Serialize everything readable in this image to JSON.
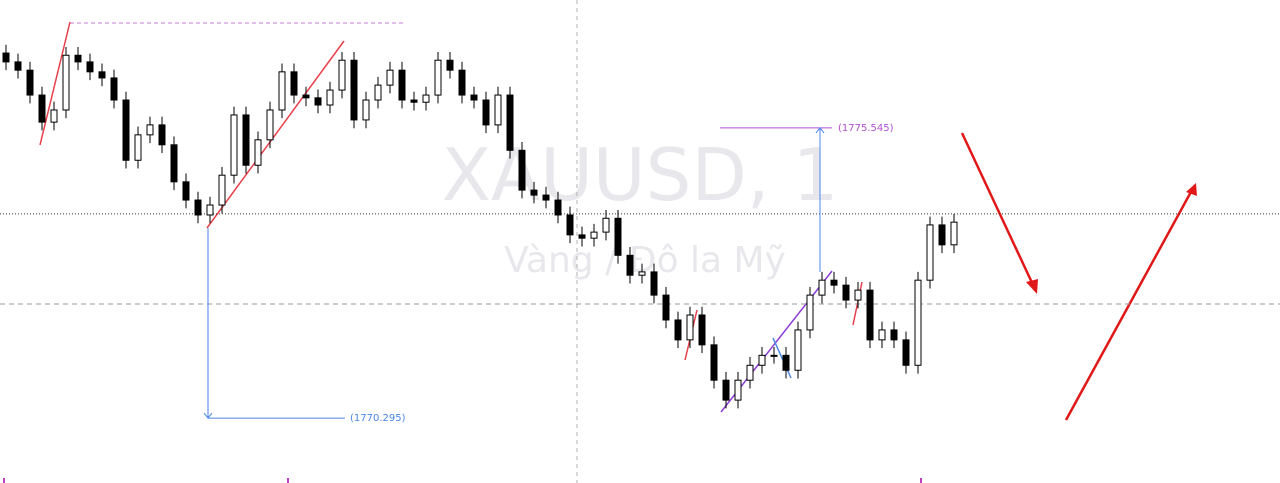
{
  "chart_data": {
    "type": "candlestick",
    "watermark": {
      "symbol": "XAUUSD, 1",
      "description": "Vàng / Đô la Mỹ"
    },
    "ylim": [
      1769.12,
      1777.86
    ],
    "up_color": "#ffffff",
    "down_color": "#000000",
    "wick_color": "#000000",
    "open": [
      1776.9,
      1776.74,
      1776.59,
      1776.14,
      1775.65,
      1775.87,
      1776.86,
      1776.74,
      1776.56,
      1776.45,
      1776.05,
      1774.96,
      1775.42,
      1775.6,
      1775.24,
      1774.57,
      1774.24,
      1773.97,
      1774.15,
      1774.69,
      1775.78,
      1774.87,
      1775.33,
      1775.87,
      1776.56,
      1776.14,
      1776.09,
      1775.96,
      1776.23,
      1776.77,
      1775.69,
      1776.05,
      1776.32,
      1776.59,
      1776.05,
      1776.01,
      1776.14,
      1776.77,
      1776.59,
      1776.14,
      1776.05,
      1775.6,
      1776.14,
      1775.14,
      1774.42,
      1774.33,
      1774.24,
      1773.97,
      1773.61,
      1773.55,
      1773.66,
      1773.91,
      1773.24,
      1772.88,
      1772.94,
      1772.52,
      1772.07,
      1771.71,
      1772.16,
      1771.62,
      1770.98,
      1770.62,
      1770.98,
      1771.25,
      1771.43,
      1771.43,
      1771.16,
      1771.89,
      1772.52,
      1772.79,
      1772.7,
      1772.43,
      1772.61,
      1771.71,
      1771.89,
      1771.71,
      1771.25,
      1772.79,
      1773.79,
      1773.43
    ],
    "high": [
      1777.05,
      1776.89,
      1776.74,
      1776.29,
      1776.02,
      1777.01,
      1777.01,
      1776.89,
      1776.71,
      1776.6,
      1776.2,
      1775.57,
      1775.75,
      1775.75,
      1775.39,
      1774.72,
      1774.39,
      1774.3,
      1774.84,
      1775.93,
      1775.93,
      1775.48,
      1776.02,
      1776.71,
      1776.71,
      1776.29,
      1776.24,
      1776.38,
      1776.92,
      1776.92,
      1776.2,
      1776.47,
      1776.74,
      1776.74,
      1776.2,
      1776.29,
      1776.92,
      1776.92,
      1776.74,
      1776.29,
      1776.2,
      1776.29,
      1776.29,
      1775.29,
      1774.57,
      1774.48,
      1774.39,
      1774.12,
      1773.76,
      1773.81,
      1774.06,
      1774.06,
      1773.39,
      1773.09,
      1773.09,
      1772.67,
      1772.22,
      1772.31,
      1772.31,
      1771.77,
      1771.13,
      1771.13,
      1771.4,
      1771.58,
      1771.58,
      1771.58,
      1772.04,
      1772.67,
      1772.94,
      1772.94,
      1772.85,
      1772.76,
      1772.76,
      1772.04,
      1772.04,
      1771.86,
      1772.94,
      1773.94,
      1773.94,
      1773.99
    ],
    "low": [
      1776.59,
      1776.44,
      1775.99,
      1775.5,
      1775.5,
      1775.72,
      1776.59,
      1776.41,
      1776.3,
      1775.9,
      1774.81,
      1774.81,
      1775.27,
      1775.09,
      1774.42,
      1774.09,
      1773.82,
      1773.82,
      1774.0,
      1774.54,
      1774.72,
      1774.72,
      1775.18,
      1775.72,
      1775.99,
      1775.94,
      1775.81,
      1775.81,
      1776.08,
      1775.54,
      1775.54,
      1775.9,
      1776.17,
      1775.9,
      1775.86,
      1775.86,
      1775.99,
      1776.44,
      1775.99,
      1775.9,
      1775.45,
      1775.45,
      1774.99,
      1774.27,
      1774.18,
      1774.09,
      1773.82,
      1773.46,
      1773.4,
      1773.4,
      1773.51,
      1773.09,
      1772.73,
      1772.73,
      1772.37,
      1771.92,
      1771.56,
      1771.56,
      1771.47,
      1770.83,
      1770.47,
      1770.47,
      1770.83,
      1771.1,
      1771.28,
      1771.01,
      1771.01,
      1771.74,
      1772.37,
      1772.55,
      1772.28,
      1772.28,
      1771.56,
      1771.56,
      1771.56,
      1771.1,
      1771.1,
      1772.64,
      1773.28,
      1773.28
    ],
    "close": [
      1776.74,
      1776.59,
      1776.14,
      1775.65,
      1775.87,
      1776.86,
      1776.74,
      1776.56,
      1776.45,
      1776.05,
      1774.96,
      1775.42,
      1775.6,
      1775.24,
      1774.57,
      1774.24,
      1773.97,
      1774.15,
      1774.69,
      1775.78,
      1774.87,
      1775.33,
      1775.87,
      1776.56,
      1776.14,
      1776.09,
      1775.96,
      1776.23,
      1776.77,
      1775.69,
      1776.05,
      1776.32,
      1776.59,
      1776.05,
      1776.01,
      1776.14,
      1776.77,
      1776.59,
      1776.14,
      1776.05,
      1775.6,
      1776.14,
      1775.14,
      1774.42,
      1774.33,
      1774.24,
      1773.97,
      1773.61,
      1773.55,
      1773.66,
      1773.91,
      1773.24,
      1772.88,
      1772.94,
      1772.52,
      1772.07,
      1771.71,
      1772.16,
      1771.62,
      1770.98,
      1770.62,
      1770.98,
      1771.25,
      1771.43,
      1771.43,
      1771.16,
      1771.89,
      1772.52,
      1772.79,
      1772.7,
      1772.43,
      1772.61,
      1771.71,
      1771.89,
      1771.71,
      1771.25,
      1772.79,
      1773.79,
      1773.43,
      1773.84
    ],
    "price_lines": [
      1773.99,
      1772.36
    ],
    "measures": [
      {
        "value": 1770.295,
        "label": "(1770.295)",
        "color": "#4a86e8"
      },
      {
        "value": 1775.545,
        "label": "(1775.545)",
        "color": "#b04fd0"
      }
    ]
  }
}
